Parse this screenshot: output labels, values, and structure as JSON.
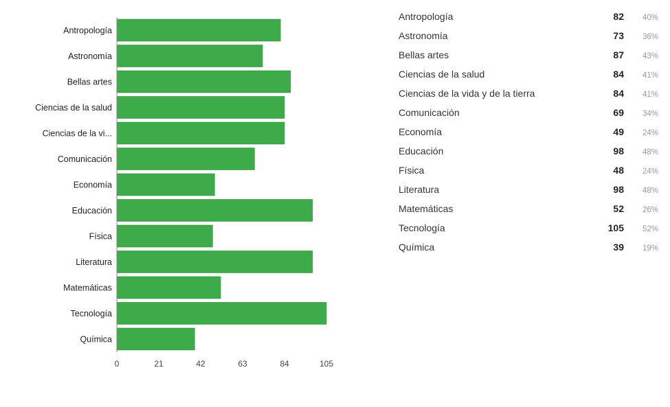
{
  "colors": {
    "bar": "#3dab4a",
    "bar_edge": "#2e8f3a",
    "axis": "#888888",
    "text": "#222222",
    "muted": "#999999"
  },
  "chart_data": {
    "type": "bar",
    "orientation": "horizontal",
    "title": "",
    "xlabel": "",
    "ylabel": "",
    "xlim": [
      0,
      105
    ],
    "ticks": [
      "0",
      "21",
      "42",
      "63",
      "84",
      "105"
    ],
    "grid": false,
    "categories": [
      "Antropología",
      "Astronomía",
      "Bellas artes",
      "Ciencias de la salud",
      "Ciencias de la vi...",
      "Comunicación",
      "Economía",
      "Educación",
      "Física",
      "Literatura",
      "Matemáticas",
      "Tecnología",
      "Química"
    ],
    "values": [
      82,
      73,
      87,
      84,
      84,
      69,
      49,
      98,
      48,
      98,
      52,
      105,
      39
    ]
  },
  "summary": {
    "rows": [
      {
        "name": "Antropología",
        "count": "82",
        "pct": "40%"
      },
      {
        "name": "Astronomía",
        "count": "73",
        "pct": "36%"
      },
      {
        "name": "Bellas artes",
        "count": "87",
        "pct": "43%"
      },
      {
        "name": "Ciencias de la salud",
        "count": "84",
        "pct": "41%"
      },
      {
        "name": "Ciencias de la vida y de la tierra",
        "count": "84",
        "pct": "41%"
      },
      {
        "name": "Comunicación",
        "count": "69",
        "pct": "34%"
      },
      {
        "name": "Economía",
        "count": "49",
        "pct": "24%"
      },
      {
        "name": "Educación",
        "count": "98",
        "pct": "48%"
      },
      {
        "name": "Física",
        "count": "48",
        "pct": "24%"
      },
      {
        "name": "Literatura",
        "count": "98",
        "pct": "48%"
      },
      {
        "name": "Matemáticas",
        "count": "52",
        "pct": "26%"
      },
      {
        "name": "Tecnología",
        "count": "105",
        "pct": "52%"
      },
      {
        "name": "Química",
        "count": "39",
        "pct": "19%"
      }
    ]
  }
}
